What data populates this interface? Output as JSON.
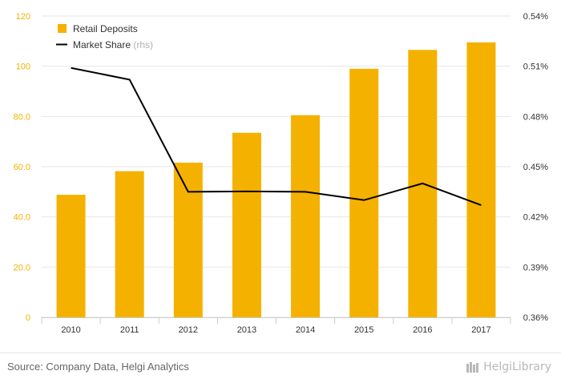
{
  "chart_data": {
    "type": "bar+line",
    "categories": [
      "2010",
      "2011",
      "2012",
      "2013",
      "2014",
      "2015",
      "2016",
      "2017"
    ],
    "series": [
      {
        "name": "Retail Deposits",
        "type": "bar",
        "axis": "left",
        "values": [
          48.8,
          58.2,
          61.6,
          73.5,
          80.5,
          99.0,
          106.5,
          109.5
        ]
      },
      {
        "name": "Market Share",
        "name_suffix": "(rhs)",
        "type": "line",
        "axis": "right",
        "values": [
          0.509,
          0.502,
          0.435,
          0.4352,
          0.435,
          0.43,
          0.44,
          0.427
        ]
      }
    ],
    "y_left": {
      "min": 0,
      "max": 120,
      "ticks": [
        "0",
        "20.0",
        "40.0",
        "60.0",
        "80.0",
        "100",
        "120"
      ]
    },
    "y_right": {
      "min": 0.36,
      "max": 0.54,
      "ticks": [
        "0.36%",
        "0.39%",
        "0.42%",
        "0.45%",
        "0.48%",
        "0.51%",
        "0.54%"
      ]
    },
    "grid": true,
    "legend": "top-left",
    "colors": {
      "bar": "#f5b100",
      "line": "#000000",
      "left_ticks": "#f5b100",
      "grid": "#e6e6e6"
    }
  },
  "footer": {
    "source": "Source: Company Data, Helgi Analytics",
    "brand": "HelgiLibrary"
  }
}
